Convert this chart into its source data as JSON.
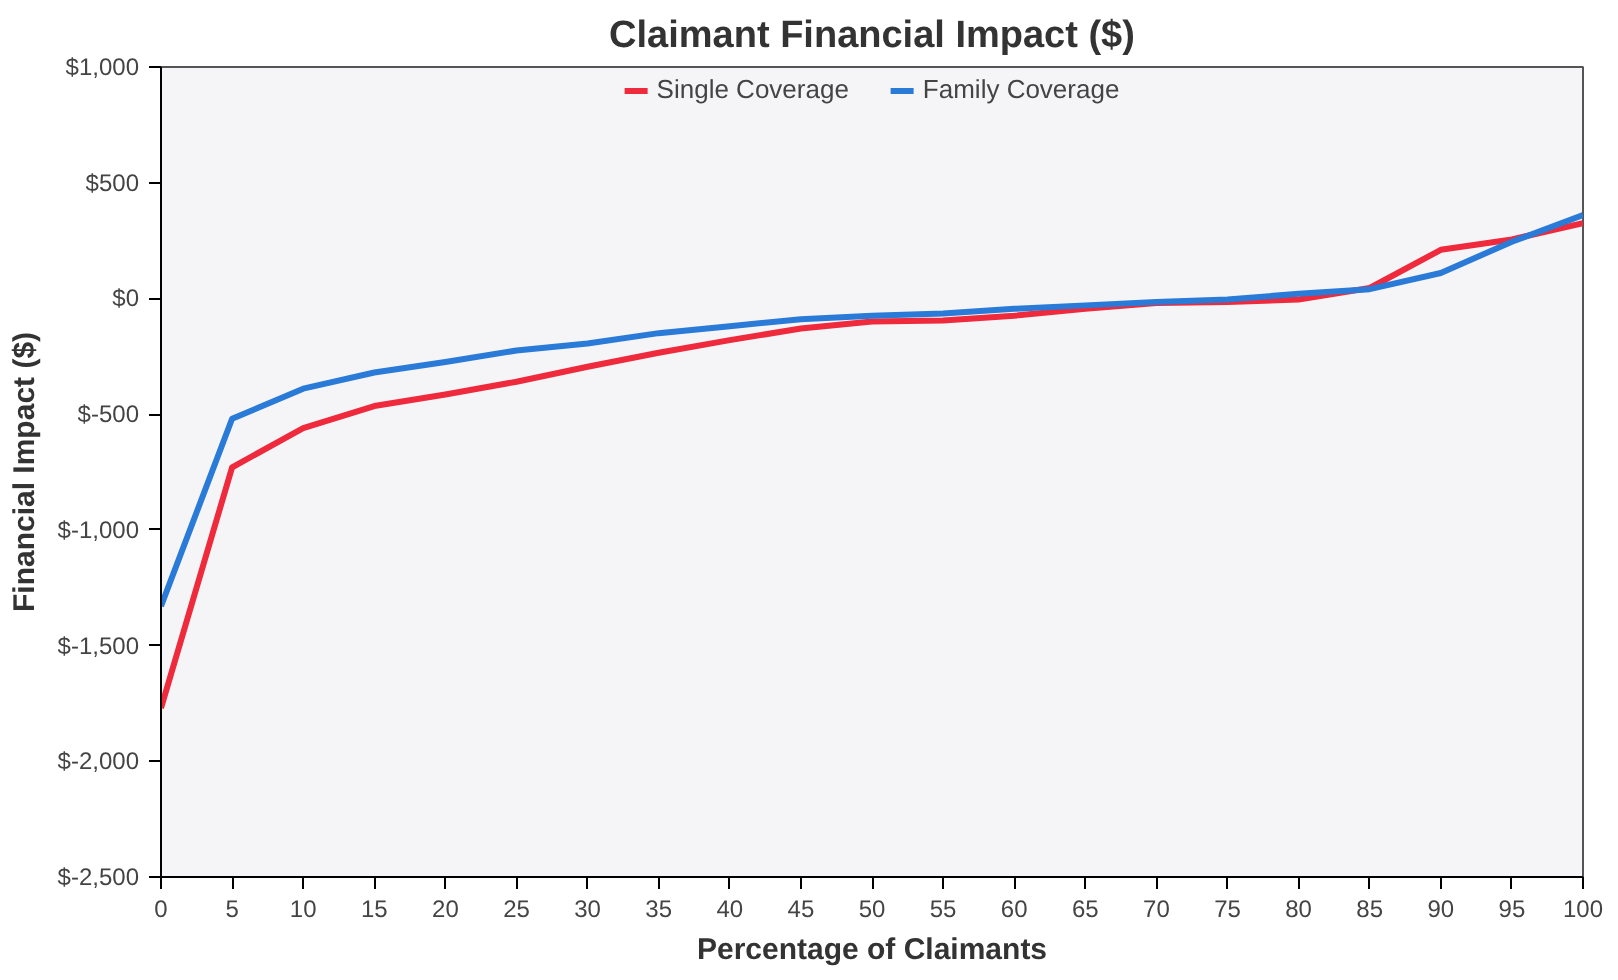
{
  "chart_data": {
    "type": "line",
    "title": "Claimant Financial Impact ($)",
    "xlabel": "Percentage of Claimants",
    "ylabel": "Financial Impact ($)",
    "x": [
      0,
      5,
      10,
      15,
      20,
      25,
      30,
      35,
      40,
      45,
      50,
      55,
      60,
      65,
      70,
      75,
      80,
      85,
      90,
      95,
      100
    ],
    "series": [
      {
        "name": "Single Coverage",
        "color": "#ee2a3c",
        "values": [
          -1770,
          -730,
          -560,
          -465,
          -415,
          -360,
          -295,
          -235,
          -180,
          -130,
          -100,
          -95,
          -75,
          -45,
          -20,
          -15,
          -5,
          45,
          210,
          255,
          325
        ]
      },
      {
        "name": "Family Coverage",
        "color": "#2a7ad8",
        "values": [
          -1330,
          -520,
          -390,
          -320,
          -275,
          -225,
          -195,
          -150,
          -120,
          -90,
          -75,
          -65,
          -45,
          -30,
          -15,
          -5,
          20,
          40,
          110,
          245,
          360
        ]
      }
    ],
    "xlim": [
      0,
      100
    ],
    "xticks": [
      0,
      5,
      10,
      15,
      20,
      25,
      30,
      35,
      40,
      45,
      50,
      55,
      60,
      65,
      70,
      75,
      80,
      85,
      90,
      95,
      100
    ],
    "ylim": [
      -2500,
      1000
    ],
    "yticks": [
      {
        "value": -2500,
        "label": "$-2,500"
      },
      {
        "value": -2000,
        "label": "$-2,000"
      },
      {
        "value": -1500,
        "label": "$-1,500"
      },
      {
        "value": -1000,
        "label": "$-1,000"
      },
      {
        "value": -500,
        "label": "$-500"
      },
      {
        "value": 0,
        "label": "$0"
      },
      {
        "value": 500,
        "label": "$500"
      },
      {
        "value": 1000,
        "label": "$1,000"
      }
    ],
    "grid": false,
    "legend": "top",
    "marker": "none",
    "line_style": "solid"
  }
}
